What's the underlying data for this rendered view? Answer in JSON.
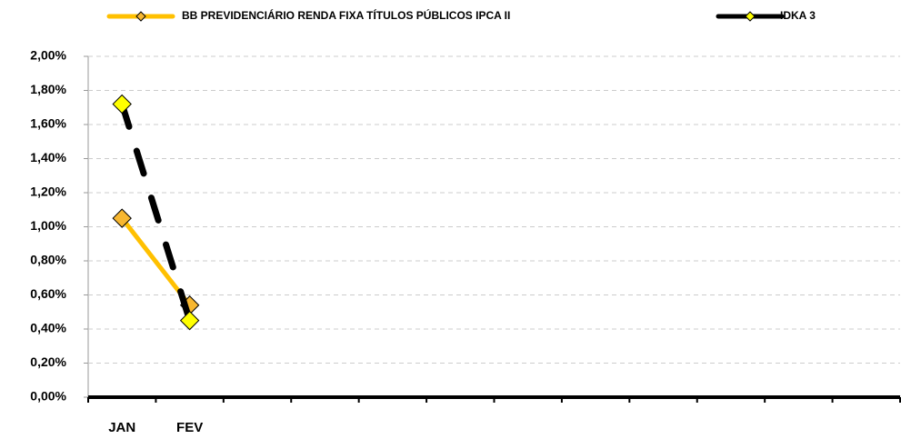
{
  "chart_data": {
    "type": "line",
    "categories": [
      "JAN",
      "FEV",
      null,
      null,
      null,
      null,
      null,
      null,
      null,
      null,
      null,
      null
    ],
    "series": [
      {
        "name": "BB PREVIDENCIÁRIO RENDA FIXA TÍTULOS PÚBLICOS IPCA II",
        "color": "#ffc000",
        "marker_color": "#f7b731",
        "line_style": "solid",
        "values": [
          1.05,
          0.54,
          null,
          null,
          null,
          null,
          null,
          null,
          null,
          null,
          null,
          null
        ]
      },
      {
        "name": "IDKA 3",
        "color": "#000000",
        "marker_color": "#ffff00",
        "line_style": "dashed",
        "values": [
          1.72,
          0.45,
          null,
          null,
          null,
          null,
          null,
          null,
          null,
          null,
          null,
          null
        ]
      }
    ],
    "ylim": [
      0,
      2
    ],
    "yticks": [
      {
        "value": 0,
        "label": "0,00%"
      },
      {
        "value": 0.2,
        "label": "0,20%"
      },
      {
        "value": 0.4,
        "label": "0,40%"
      },
      {
        "value": 0.6,
        "label": "0,60%"
      },
      {
        "value": 0.8,
        "label": "0,80%"
      },
      {
        "value": 1.0,
        "label": "1,00%"
      },
      {
        "value": 1.2,
        "label": "1,20%"
      },
      {
        "value": 1.4,
        "label": "1,40%"
      },
      {
        "value": 1.6,
        "label": "1,60%"
      },
      {
        "value": 1.8,
        "label": "1,80%"
      },
      {
        "value": 2.0,
        "label": "2,00%"
      }
    ],
    "grid": true,
    "legend": "top"
  }
}
